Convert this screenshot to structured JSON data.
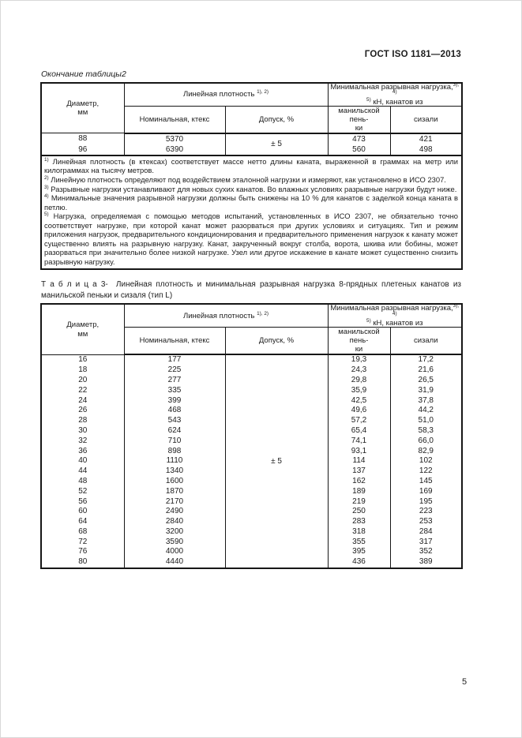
{
  "page": {
    "doc_header": "ГОСТ ISO 1181—2013",
    "page_number": "5"
  },
  "table2": {
    "caption": "Окончание таблицы2",
    "header": {
      "diameter": "Диаметр,\nмм",
      "linear_density": "Линейная плотность",
      "linear_density_sup": "1), 2)",
      "min_load_line1": "Минимальная разрывная нагрузка,",
      "min_load_sup1": "3), 4)",
      "min_load_sup2": "5)",
      "min_load_line2": " кН, канатов из",
      "nominal": "Номинальная, ктекс",
      "tolerance_pct": "Допуск, %",
      "manila": "манильской пень-\nки",
      "sisal": "сизали"
    },
    "tolerance": "± 5",
    "rows": [
      {
        "diameter": "88",
        "nominal": "5370",
        "manila": "473",
        "sisal": "421"
      },
      {
        "diameter": "96",
        "nominal": "6390",
        "manila": "560",
        "sisal": "498"
      }
    ],
    "footnotes": [
      {
        "marker": "1)",
        "text": "Линейная плотность (в ктексах) соответствует массе нетто длины каната, выраженной в граммах на метр или килограммах на тысячу метров."
      },
      {
        "marker": "2)",
        "text": "Линейную плотность определяют под воздействием эталонной нагрузки и измеряют, как установлено в ИСО 2307."
      },
      {
        "marker": "3)",
        "text": "Разрывные нагрузки устанавливают для новых сухих канатов. Во влажных условиях разрывные нагрузки будут ниже."
      },
      {
        "marker": "4)",
        "text": "Минимальные значения разрывной нагрузки должны быть снижены на 10 % для канатов с заделкой конца каната в петлю."
      },
      {
        "marker": "5)",
        "text": "Нагрузка, определяемая с помощью методов испытаний, установленных в ИСО 2307, не обязательно точно соответствует нагрузке, при которой канат может разорваться при других условиях и ситуациях. Тип и режим приложения нагрузок, предварительного кондиционирования и предварительного применения нагрузок к канату может существенно влиять на разрывную нагрузку. Канат, закрученный вокруг столба, ворота, шкива или бобины, может разорваться при значительно более низкой нагрузке. Узел или другое искажение в канате может существенно снизить разрывную нагрузку."
      }
    ]
  },
  "table3": {
    "caption_label": "Т а б л и ц а  3-",
    "caption_text": "Линейная плотность и минимальная разрывная нагрузка 8-прядных плетеных канатов из манильской пеньки и сизаля (тип L)",
    "header": {
      "diameter": "Диаметр,\nмм",
      "linear_density": "Линейная плотность",
      "linear_density_sup": "1), 2)",
      "min_load_line1": "Минимальная разрывная нагрузка,",
      "min_load_sup1": "3), 4)",
      "min_load_sup2": "5)",
      "min_load_line2": " кН, канатов из",
      "nominal": "Номинальная, ктекс",
      "tolerance_pct": "Допуск, %",
      "manila": "манильской пень-\nки",
      "sisal": "сизали"
    },
    "tolerance": "± 5",
    "rows": [
      {
        "diameter": "16",
        "nominal": "177",
        "manila": "19,3",
        "sisal": "17,2"
      },
      {
        "diameter": "18",
        "nominal": "225",
        "manila": "24,3",
        "sisal": "21,6"
      },
      {
        "diameter": "20",
        "nominal": "277",
        "manila": "29,8",
        "sisal": "26,5"
      },
      {
        "diameter": "22",
        "nominal": "335",
        "manila": "35,9",
        "sisal": "31,9"
      },
      {
        "diameter": "24",
        "nominal": "399",
        "manila": "42,5",
        "sisal": "37,8"
      },
      {
        "diameter": "26",
        "nominal": "468",
        "manila": "49,6",
        "sisal": "44,2"
      },
      {
        "diameter": "28",
        "nominal": "543",
        "manila": "57,2",
        "sisal": "51,0"
      },
      {
        "diameter": "30",
        "nominal": "624",
        "manila": "65,4",
        "sisal": "58,3"
      },
      {
        "diameter": "32",
        "nominal": "710",
        "manila": "74,1",
        "sisal": "66,0"
      },
      {
        "diameter": "36",
        "nominal": "898",
        "manila": "93,1",
        "sisal": "82,9"
      },
      {
        "diameter": "40",
        "nominal": "1110",
        "manila": "114",
        "sisal": "102"
      },
      {
        "diameter": "44",
        "nominal": "1340",
        "manila": "137",
        "sisal": "122"
      },
      {
        "diameter": "48",
        "nominal": "1600",
        "manila": "162",
        "sisal": "145"
      },
      {
        "diameter": "52",
        "nominal": "1870",
        "manila": "189",
        "sisal": "169"
      },
      {
        "diameter": "56",
        "nominal": "2170",
        "manila": "219",
        "sisal": "195"
      },
      {
        "diameter": "60",
        "nominal": "2490",
        "manila": "250",
        "sisal": "223"
      },
      {
        "diameter": "64",
        "nominal": "2840",
        "manila": "283",
        "sisal": "253"
      },
      {
        "diameter": "68",
        "nominal": "3200",
        "manila": "318",
        "sisal": "284"
      },
      {
        "diameter": "72",
        "nominal": "3590",
        "manila": "355",
        "sisal": "317"
      },
      {
        "diameter": "76",
        "nominal": "4000",
        "manila": "395",
        "sisal": "352"
      },
      {
        "diameter": "80",
        "nominal": "4440",
        "manila": "436",
        "sisal": "389"
      }
    ]
  }
}
